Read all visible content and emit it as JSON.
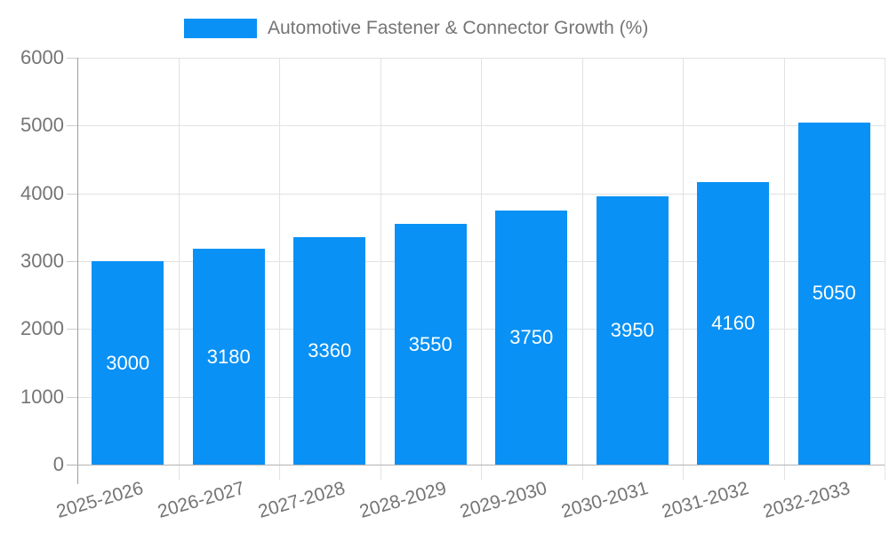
{
  "chart_data": {
    "type": "bar",
    "title": "Automotive Fastener & Connector Growth (%)",
    "categories": [
      "2025-2026",
      "2026-2027",
      "2027-2028",
      "2028-2029",
      "2029-2030",
      "2030-2031",
      "2031-2032",
      "2032-2033"
    ],
    "values": [
      3000,
      3180,
      3360,
      3550,
      3750,
      3950,
      4160,
      5050
    ],
    "bar_value_labels": [
      "3000",
      "3180",
      "3360",
      "3550",
      "3750",
      "3950",
      "4160",
      "5050"
    ],
    "xlabel": "",
    "ylabel": "",
    "ylim": [
      0,
      6000
    ],
    "yticks": [
      0,
      1000,
      2000,
      3000,
      4000,
      5000,
      6000
    ],
    "grid": true,
    "legend_position": "top",
    "colors": {
      "bar": "#0991f5",
      "axis_text": "#757575",
      "bar_label_text": "#ffffff",
      "gridline": "#e2e2e2",
      "baseline": "#b3b3b3",
      "y_axis_line": "#9e9e9e",
      "background": "#ffffff"
    }
  }
}
